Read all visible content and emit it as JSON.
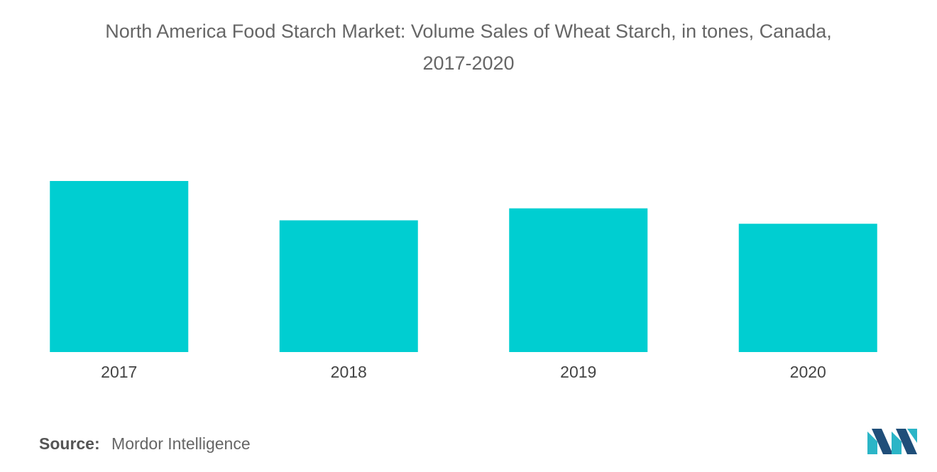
{
  "chart_data": {
    "type": "bar",
    "title_line1": "North America Food Starch Market: Volume Sales of Wheat Starch, in tones, Canada,",
    "title_line2": "2017-2020",
    "xlabel": "",
    "ylabel": "",
    "categories": [
      "2017",
      "2018",
      "2019",
      "2020"
    ],
    "values": [
      100,
      77,
      84,
      75
    ],
    "ylim": [
      0,
      100
    ],
    "grid": false,
    "legend": "none",
    "bar_color": "#00CED1"
  },
  "source": {
    "label": "Source:",
    "text": "Mordor Intelligence"
  },
  "colors": {
    "title": "#666666",
    "axis_text": "#444444",
    "logo_dark": "#1F4E79",
    "logo_light": "#2BB5C7"
  },
  "logo": {
    "icon": "mordor-intelligence-logo-icon"
  }
}
